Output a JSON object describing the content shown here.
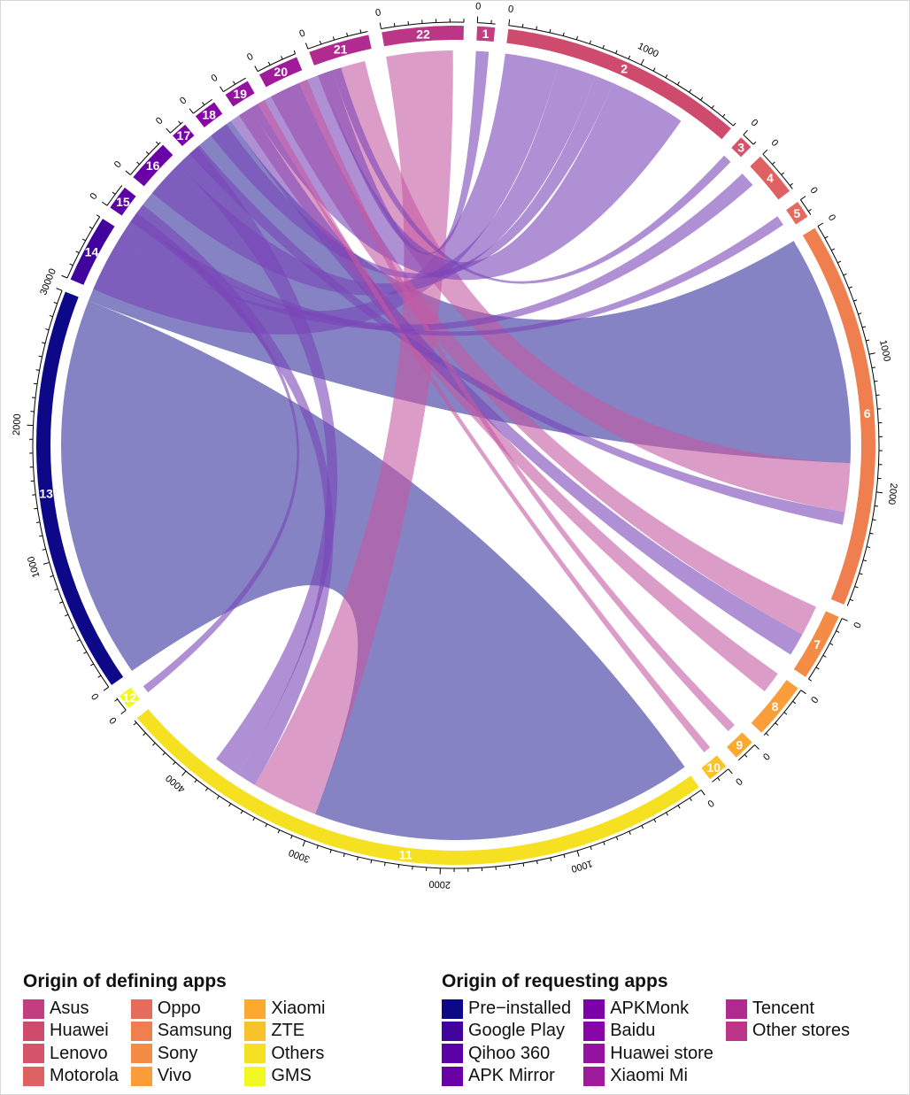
{
  "chart_data": {
    "type": "chord",
    "sectors": [
      {
        "id": "1",
        "value": 130,
        "color": "#c23e80"
      },
      {
        "id": "2",
        "value": 1800,
        "color": "#cf4b6e"
      },
      {
        "id": "3",
        "value": 100,
        "color": "#d5546a"
      },
      {
        "id": "4",
        "value": 330,
        "color": "#df6263"
      },
      {
        "id": "5",
        "value": 130,
        "color": "#e56b5d"
      },
      {
        "id": "6",
        "value": 2850,
        "color": "#f07f4f"
      },
      {
        "id": "7",
        "value": 500,
        "color": "#f58c46"
      },
      {
        "id": "8",
        "value": 420,
        "color": "#fa9e3b"
      },
      {
        "id": "9",
        "value": 160,
        "color": "#fbaa2f"
      },
      {
        "id": "10",
        "value": 150,
        "color": "#f9c22a"
      },
      {
        "id": "11",
        "value": 4520,
        "color": "#f5e022"
      },
      {
        "id": "12",
        "value": 110,
        "color": "#f0f921"
      },
      {
        "id": "13",
        "value": 3000,
        "color": "#0d0887"
      },
      {
        "id": "14",
        "value": 500,
        "color": "#41049d"
      },
      {
        "id": "15",
        "value": 180,
        "color": "#5c01a6"
      },
      {
        "id": "16",
        "value": 320,
        "color": "#6a00a8"
      },
      {
        "id": "17",
        "value": 120,
        "color": "#7a02a8"
      },
      {
        "id": "18",
        "value": 170,
        "color": "#8606a6"
      },
      {
        "id": "19",
        "value": 190,
        "color": "#9512a1"
      },
      {
        "id": "20",
        "value": 300,
        "color": "#a01a9c"
      },
      {
        "id": "21",
        "value": 450,
        "color": "#b12a90"
      },
      {
        "id": "22",
        "value": 600,
        "color": "#bc3587"
      }
    ],
    "axis_tick_labels": [
      "0",
      "1000",
      "2000",
      "3000",
      "4000"
    ],
    "flows": [
      {
        "from": "11",
        "to": "13",
        "value": 3000
      },
      {
        "from": "6",
        "to": "13",
        "value": 1800
      },
      {
        "from": "2",
        "to": "14",
        "value": 420
      },
      {
        "from": "11",
        "to": "22",
        "value": 520
      },
      {
        "from": "6",
        "to": "21",
        "value": 380
      },
      {
        "from": "2",
        "to": "16",
        "value": 300
      },
      {
        "from": "7",
        "to": "20",
        "value": 240
      },
      {
        "from": "8",
        "to": "19",
        "value": 170
      },
      {
        "from": "11",
        "to": "15",
        "value": 160
      },
      {
        "from": "4",
        "to": "14",
        "value": 120
      },
      {
        "from": "2",
        "to": "18",
        "value": 150
      },
      {
        "from": "6",
        "to": "17",
        "value": 100
      },
      {
        "from": "11",
        "to": "16",
        "value": 200
      },
      {
        "from": "7",
        "to": "13",
        "value": 180
      },
      {
        "from": "2",
        "to": "13",
        "value": 600
      },
      {
        "from": "1",
        "to": "13",
        "value": 100
      },
      {
        "from": "9",
        "to": "20",
        "value": 70
      },
      {
        "from": "10",
        "to": "19",
        "value": 60
      },
      {
        "from": "5",
        "to": "14",
        "value": 80
      },
      {
        "from": "3",
        "to": "13",
        "value": 70
      },
      {
        "from": "12",
        "to": "14",
        "value": 60
      }
    ]
  },
  "legends": [
    {
      "title": "Origin of defining apps",
      "columns": [
        [
          {
            "label": "Asus",
            "color": "#c23e80"
          },
          {
            "label": "Huawei",
            "color": "#cf4b6e"
          },
          {
            "label": "Lenovo",
            "color": "#d5546a"
          },
          {
            "label": "Motorola",
            "color": "#df6263"
          }
        ],
        [
          {
            "label": "Oppo",
            "color": "#e56b5d"
          },
          {
            "label": "Samsung",
            "color": "#f07f4f"
          },
          {
            "label": "Sony",
            "color": "#f58c46"
          },
          {
            "label": "Vivo",
            "color": "#fa9e3b"
          }
        ],
        [
          {
            "label": "Xiaomi",
            "color": "#fbaa2f"
          },
          {
            "label": "ZTE",
            "color": "#f9c22a"
          },
          {
            "label": "Others",
            "color": "#f5e022"
          },
          {
            "label": "GMS",
            "color": "#f0f921"
          }
        ]
      ]
    },
    {
      "title": "Origin of requesting apps",
      "columns": [
        [
          {
            "label": "Pre−installed",
            "color": "#0d0887"
          },
          {
            "label": "Google Play",
            "color": "#41049d"
          },
          {
            "label": "Qihoo 360",
            "color": "#5c01a6"
          },
          {
            "label": "APK Mirror",
            "color": "#6a00a8"
          }
        ],
        [
          {
            "label": "APKMonk",
            "color": "#7a02a8"
          },
          {
            "label": "Baidu",
            "color": "#8606a6"
          },
          {
            "label": "Huawei store",
            "color": "#9512a1"
          },
          {
            "label": "Xiaomi Mi",
            "color": "#a01a9c"
          }
        ],
        [
          {
            "label": "Tencent",
            "color": "#b12a90"
          },
          {
            "label": "Other stores",
            "color": "#bc3587"
          }
        ]
      ]
    }
  ]
}
